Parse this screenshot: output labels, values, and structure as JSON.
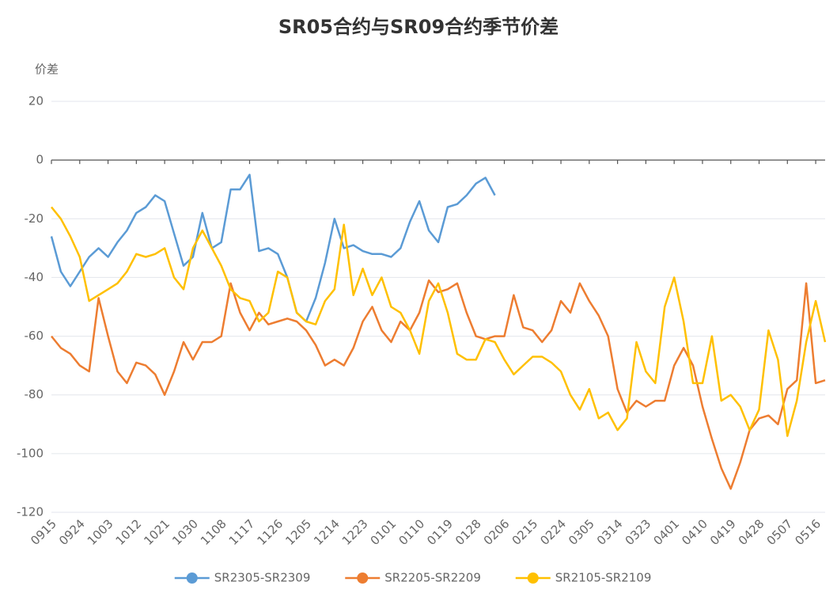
{
  "chart_data": {
    "type": "line",
    "title": "SR05合约与SR09合约季节价差",
    "y_label": "价差",
    "categories": [
      "0915",
      null,
      null,
      "0924",
      null,
      null,
      "1003",
      null,
      null,
      "1012",
      null,
      null,
      "1021",
      null,
      null,
      "1030",
      null,
      null,
      "1108",
      null,
      null,
      "1117",
      null,
      null,
      "1126",
      null,
      null,
      "1205",
      null,
      null,
      "1214",
      null,
      null,
      "1223",
      null,
      null,
      "0101",
      null,
      null,
      "0110",
      null,
      null,
      "0119",
      null,
      null,
      "0128",
      null,
      null,
      "0206",
      null,
      null,
      "0215",
      null,
      null,
      "0224",
      null,
      null,
      "0305",
      null,
      null,
      "0314",
      null,
      null,
      "0323",
      null,
      null,
      "0401",
      null,
      null,
      "0410",
      null,
      null,
      "0419",
      null,
      null,
      "0428",
      null,
      null,
      "0507",
      null,
      null,
      "0516",
      null
    ],
    "ylim": [
      -120,
      20
    ],
    "yticks": [
      -120,
      -100,
      -80,
      -60,
      -40,
      -20,
      0,
      20
    ],
    "grid": true,
    "series": [
      {
        "name": "SR2305-SR2309",
        "color": "#5b9bd5",
        "values": [
          -26,
          -38,
          -43,
          -38,
          -33,
          -30,
          -33,
          -28,
          -24,
          -18,
          -16,
          -12,
          -14,
          -25,
          -36,
          -33,
          -18,
          -30,
          -28,
          -10,
          -10,
          -5,
          -31,
          -30,
          -32,
          -40,
          -52,
          -55,
          -47,
          -35,
          -20,
          -30,
          -29,
          -31,
          -32,
          -32,
          -33,
          -30,
          -21,
          -14,
          -24,
          -28,
          -16,
          -15,
          -12,
          -8,
          -6,
          -12,
          null,
          null,
          null,
          null,
          null,
          null,
          null,
          null,
          null,
          null,
          null,
          null,
          null,
          null,
          null,
          null,
          null,
          null,
          null,
          null,
          null,
          null,
          null,
          null,
          null,
          null,
          null,
          null,
          null,
          null,
          null,
          null,
          null,
          null,
          null
        ]
      },
      {
        "name": "SR2205-SR2209",
        "color": "#ed7d31",
        "values": [
          -60,
          -64,
          -66,
          -70,
          -72,
          -47,
          -60,
          -72,
          -76,
          -69,
          -70,
          -73,
          -80,
          -72,
          -62,
          -68,
          -62,
          -62,
          -60,
          -42,
          -52,
          -58,
          -52,
          -56,
          -55,
          -54,
          -55,
          -58,
          -63,
          -70,
          -68,
          -70,
          -64,
          -55,
          -50,
          -58,
          -62,
          -55,
          -58,
          -52,
          -41,
          -45,
          -44,
          -42,
          -52,
          -60,
          -61,
          -60,
          -60,
          -46,
          -57,
          -58,
          -62,
          -58,
          -48,
          -52,
          -42,
          -48,
          -53,
          -60,
          -78,
          -86,
          -82,
          -84,
          -82,
          -82,
          -70,
          -64,
          -70,
          -84,
          -95,
          -105,
          -112,
          -103,
          -92,
          -88,
          -87,
          -90,
          -78,
          -75,
          -42,
          -76,
          -75
        ]
      },
      {
        "name": "SR2105-SR2109",
        "color": "#ffc000",
        "values": [
          -16,
          -20,
          -26,
          -33,
          -48,
          -46,
          -44,
          -42,
          -38,
          -32,
          -33,
          -32,
          -30,
          -40,
          -44,
          -30,
          -24,
          -30,
          -36,
          -44,
          -47,
          -48,
          -55,
          -52,
          -38,
          -40,
          -52,
          -55,
          -56,
          -48,
          -44,
          -22,
          -46,
          -37,
          -46,
          -40,
          -50,
          -52,
          -58,
          -66,
          -48,
          -42,
          -52,
          -66,
          -68,
          -68,
          -61,
          -62,
          -68,
          -73,
          -70,
          -67,
          -67,
          -69,
          -72,
          -80,
          -85,
          -78,
          -88,
          -86,
          -92,
          -88,
          -62,
          -72,
          -76,
          -50,
          -40,
          -55,
          -76,
          -76,
          -60,
          -82,
          -80,
          -84,
          -92,
          -85,
          -58,
          -68,
          -94,
          -82,
          -62,
          -48,
          -62
        ]
      }
    ]
  }
}
